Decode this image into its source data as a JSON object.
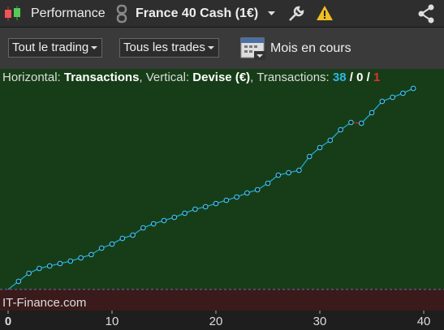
{
  "toolbar": {
    "title": "Performance",
    "instrument": "France 40 Cash (1€)"
  },
  "filters": {
    "scope": "Tout le trading",
    "trades": "Tous les trades",
    "period": "Mois en cours"
  },
  "chart_data": {
    "type": "line",
    "header": [
      "Horizontal: ",
      "Transactions",
      ", Vertical: ",
      "Devise (€)",
      ", Transactions: ",
      38,
      " / ",
      0,
      " / ",
      1
    ],
    "watermark": "IT-Finance.com",
    "x": [
      0,
      1,
      2,
      3,
      4,
      5,
      6,
      7,
      8,
      9,
      10,
      11,
      12,
      13,
      14,
      15,
      16,
      17,
      18,
      19,
      20,
      21,
      22,
      23,
      24,
      25,
      26,
      27,
      28,
      29,
      30,
      31,
      32,
      33,
      34,
      35,
      36,
      37,
      38,
      39
    ],
    "values": [
      0,
      10,
      20,
      26,
      29,
      32,
      35,
      39,
      43,
      51,
      56,
      63,
      67,
      76,
      81,
      85,
      89,
      94,
      99,
      102,
      106,
      110,
      114,
      119,
      123,
      131,
      141,
      144,
      147,
      164,
      175,
      184,
      197,
      206,
      205,
      218,
      232,
      237,
      242,
      248
    ],
    "color": "#1fa8cc",
    "loss_color": "#d02020",
    "xlim": [
      -0.78,
      41.95
    ],
    "xticks": [
      0,
      10,
      20,
      30,
      40
    ],
    "ylim": [
      -26,
      271
    ]
  }
}
